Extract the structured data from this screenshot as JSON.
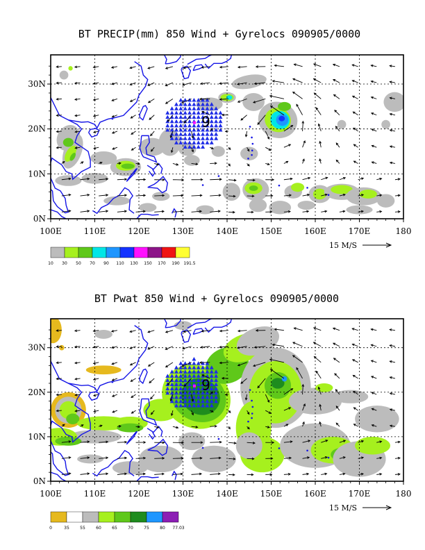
{
  "panels": [
    {
      "title": "BT PRECIP(mm) 850 Wind + Gyrelocs 090905/0000",
      "legend": [
        "10",
        "30",
        "50",
        "70",
        "90",
        "110",
        "130",
        "150",
        "170",
        "190",
        "191.5"
      ],
      "legend_colors": [
        "#bcbcbc",
        "#a6f01e",
        "#5fc81a",
        "#00e6e6",
        "#1e96ff",
        "#1432ff",
        "#ff10ff",
        "#8c1488",
        "#f01414",
        "#ffff32"
      ],
      "gyre_label": "9"
    },
    {
      "title": "BT Pwat 850 Wind + Gyrelocs 090905/0000",
      "legend": [
        "0",
        "35",
        "55",
        "60",
        "65",
        "70",
        "75",
        "80",
        "77.03"
      ],
      "legend_colors": [
        "#e6b91e",
        "#ffffff",
        "#bcbcbc",
        "#a6f01e",
        "#5fc81a",
        "#1e8c1e",
        "#1e96ff",
        "#8c1eb4"
      ],
      "gyre_label": "9"
    }
  ],
  "axes": {
    "x_ticks": [
      "100E",
      "110E",
      "120E",
      "130E",
      "140E",
      "150E",
      "160E",
      "170E",
      "180"
    ],
    "y_ticks": [
      "0N",
      "10N",
      "20N",
      "30N"
    ]
  },
  "wind_scale": "15 M/S"
}
